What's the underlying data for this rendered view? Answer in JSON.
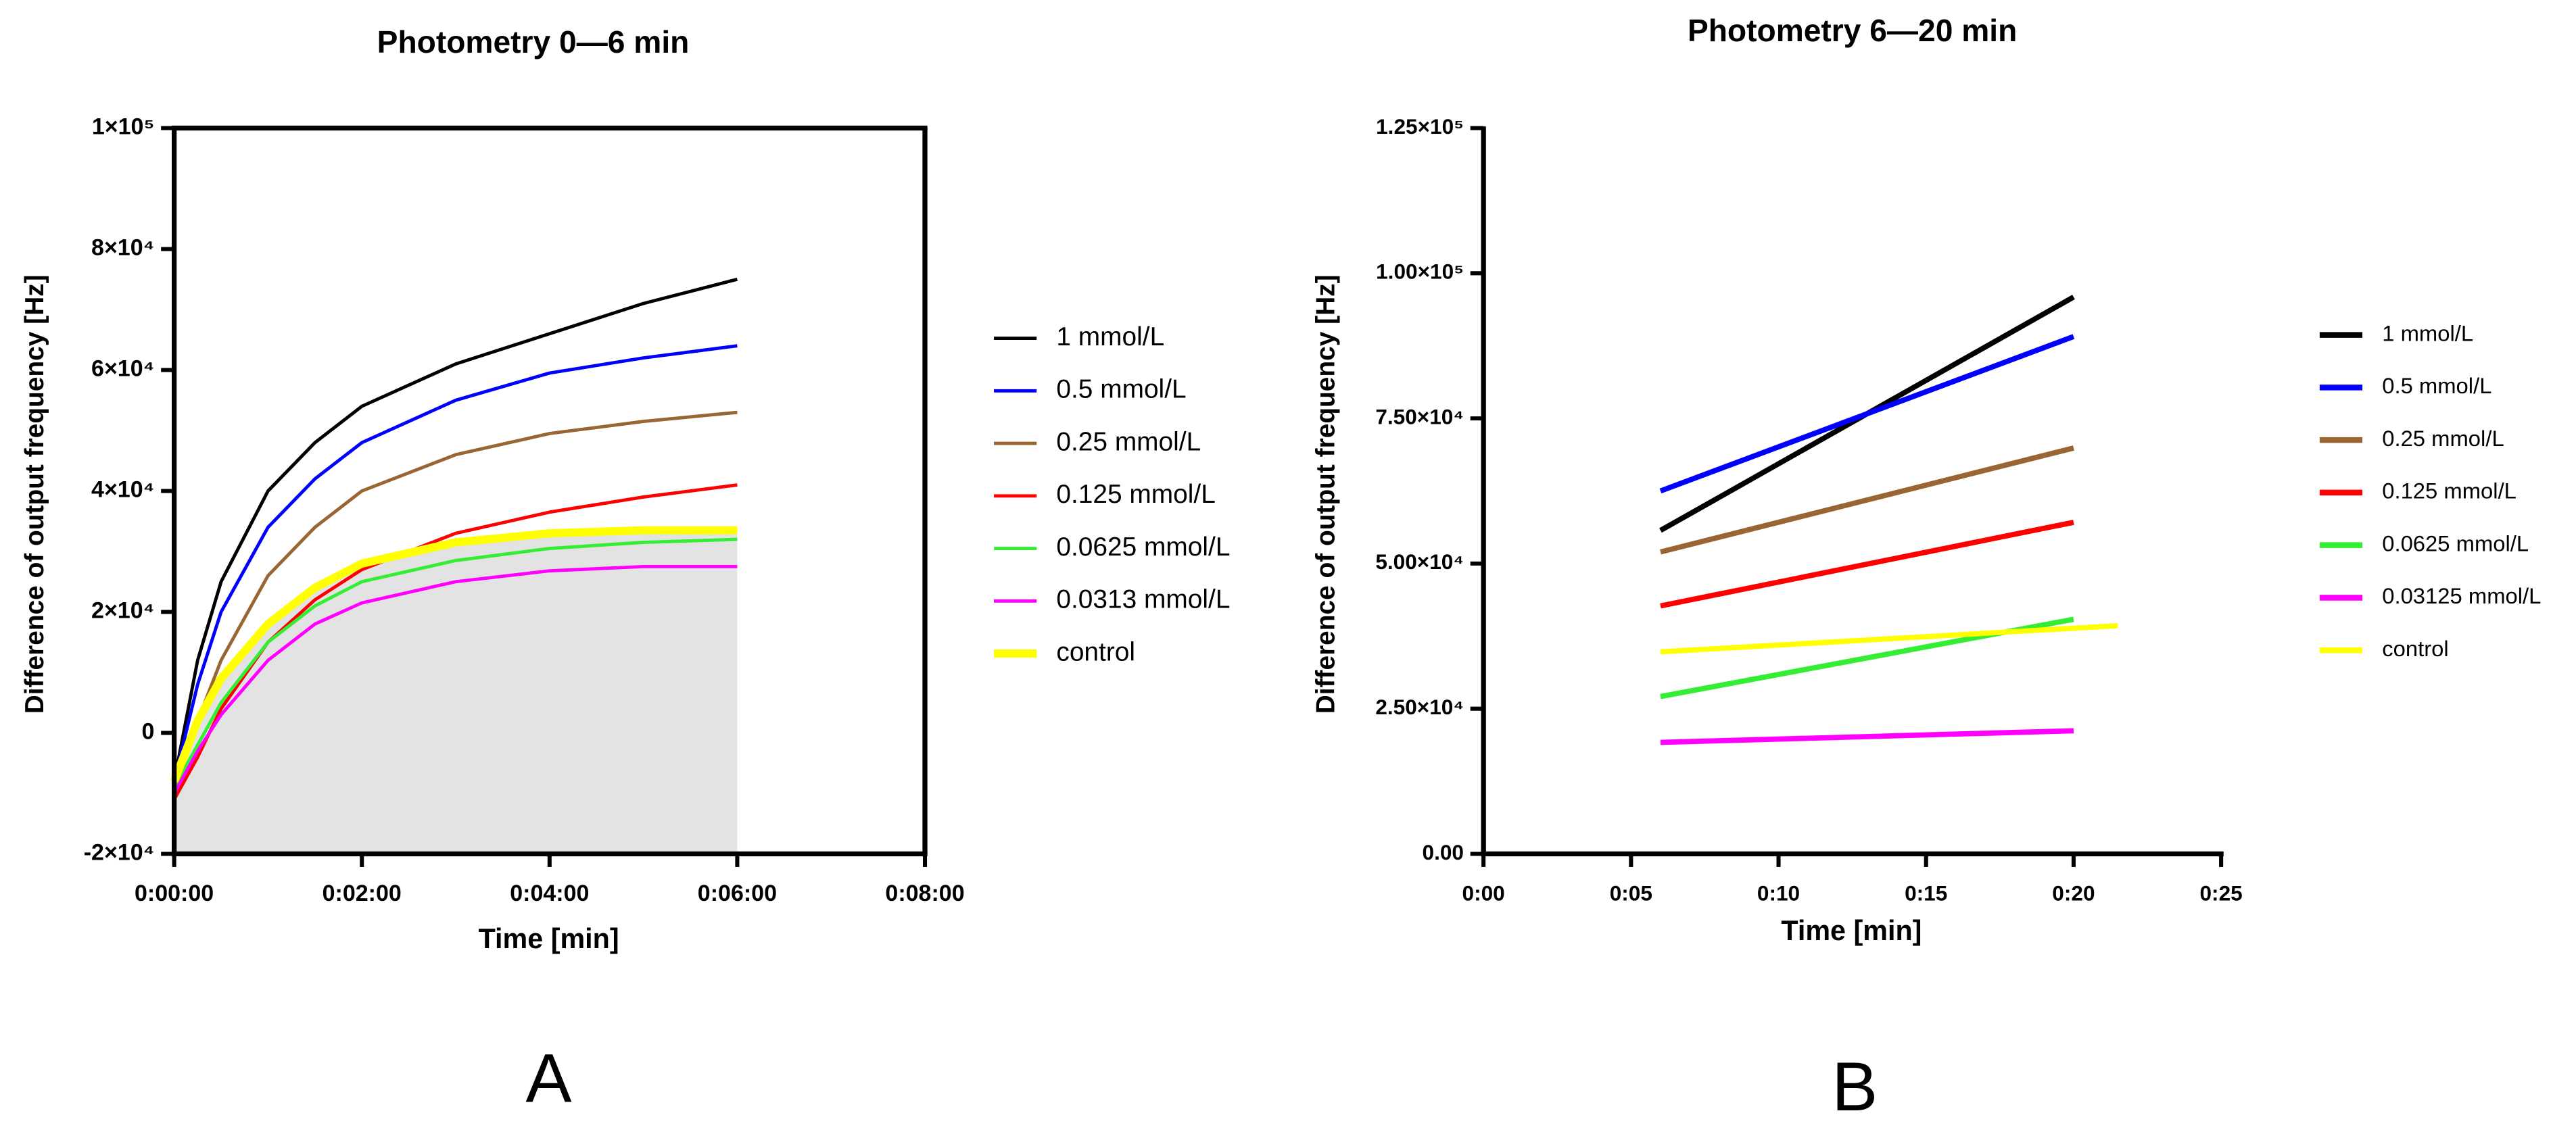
{
  "chart_data": [
    {
      "type": "line",
      "panel_label": "A",
      "title": "Photometry 0—6 min",
      "x_label": "Time [min]",
      "y_label": "Difference of output frequency [Hz]",
      "x": [
        0,
        15,
        30,
        60,
        90,
        120,
        180,
        240,
        300,
        360
      ],
      "xlim": [
        0,
        480
      ],
      "xticks": [
        {
          "value": 0,
          "label": "0:00:00"
        },
        {
          "value": 120,
          "label": "0:02:00"
        },
        {
          "value": 240,
          "label": "0:04:00"
        },
        {
          "value": 360,
          "label": "0:06:00"
        },
        {
          "value": 480,
          "label": "0:08:00"
        }
      ],
      "ylim": [
        -20000,
        100000
      ],
      "yticks": [
        {
          "value": -20000,
          "label": "-2×10⁴"
        },
        0,
        {
          "value": 20000,
          "label": "2×10⁴"
        },
        {
          "value": 40000,
          "label": "4×10⁴"
        },
        {
          "value": 60000,
          "label": "6×10⁴"
        },
        {
          "value": 80000,
          "label": "8×10⁴"
        },
        {
          "value": 100000,
          "label": "1×10⁵"
        }
      ],
      "series": [
        {
          "name": "1 mmol/L",
          "color": "#000000",
          "values": [
            -8000,
            12000,
            25000,
            40000,
            48000,
            54000,
            61000,
            66000,
            71000,
            75000
          ]
        },
        {
          "name": "0.5 mmol/L",
          "color": "#0000ff",
          "values": [
            -8000,
            8000,
            20000,
            34000,
            42000,
            48000,
            55000,
            59500,
            62000,
            64000
          ]
        },
        {
          "name": "0.25 mmol/L",
          "color": "#996633",
          "values": [
            -9000,
            2000,
            12000,
            26000,
            34000,
            40000,
            46000,
            49500,
            51500,
            53000
          ]
        },
        {
          "name": "0.125 mmol/L",
          "color": "#ff0000",
          "values": [
            -11000,
            -4000,
            4000,
            15000,
            22000,
            27000,
            33000,
            36500,
            39000,
            41000
          ]
        },
        {
          "name": "0.0625 mmol/L",
          "color": "#33ee33",
          "values": [
            -9000,
            -2000,
            5000,
            15000,
            21000,
            25000,
            28500,
            30500,
            31500,
            32000
          ]
        },
        {
          "name": "0.0313 mmol/L",
          "color": "#ff00ff",
          "values": [
            -10000,
            -3000,
            3000,
            12000,
            18000,
            21500,
            25000,
            26800,
            27500,
            27500
          ]
        },
        {
          "name": "control",
          "color": "#ffff00",
          "values": [
            -8000,
            2000,
            9000,
            18000,
            24000,
            28000,
            31500,
            33000,
            33500,
            33500
          ]
        }
      ]
    },
    {
      "type": "line",
      "panel_label": "B",
      "title": "Photometry 6—20 min",
      "x_label": "Time [min]",
      "y_label": "Difference of output frequency [Hz]",
      "xlim": [
        0,
        25
      ],
      "xticks": [
        {
          "value": 0,
          "label": "0:00"
        },
        {
          "value": 5,
          "label": "0:05"
        },
        {
          "value": 10,
          "label": "0:10"
        },
        {
          "value": 15,
          "label": "0:15"
        },
        {
          "value": 20,
          "label": "0:20"
        },
        {
          "value": 25,
          "label": "0:25"
        }
      ],
      "ylim": [
        0,
        125000
      ],
      "yticks": [
        {
          "value": 0,
          "label": "0.00"
        },
        {
          "value": 25000,
          "label": "2.50×10⁴"
        },
        {
          "value": 50000,
          "label": "5.00×10⁴"
        },
        {
          "value": 75000,
          "label": "7.50×10⁴"
        },
        {
          "value": 100000,
          "label": "1.00×10⁵"
        },
        {
          "value": 125000,
          "label": "1.25×10⁵"
        }
      ],
      "series": [
        {
          "name": "1 mmol/L",
          "color": "#000000",
          "x": [
            6,
            20
          ],
          "values": [
            55700,
            95900
          ]
        },
        {
          "name": "0.5 mmol/L",
          "color": "#0000ff",
          "x": [
            6,
            20
          ],
          "values": [
            62500,
            89100
          ]
        },
        {
          "name": "0.25 mmol/L",
          "color": "#996633",
          "x": [
            6,
            20
          ],
          "values": [
            52000,
            69900
          ]
        },
        {
          "name": "0.125 mmol/L",
          "color": "#ff0000",
          "x": [
            6,
            20
          ],
          "values": [
            42700,
            57100
          ]
        },
        {
          "name": "0.0625 mmol/L",
          "color": "#33ee33",
          "x": [
            6,
            20
          ],
          "values": [
            27100,
            40400
          ]
        },
        {
          "name": "0.03125 mmol/L",
          "color": "#ff00ff",
          "x": [
            6,
            20
          ],
          "values": [
            19200,
            21200
          ]
        },
        {
          "name": "control",
          "color": "#ffff00",
          "x": [
            6,
            21.5
          ],
          "values": [
            34800,
            39300
          ]
        }
      ]
    }
  ]
}
